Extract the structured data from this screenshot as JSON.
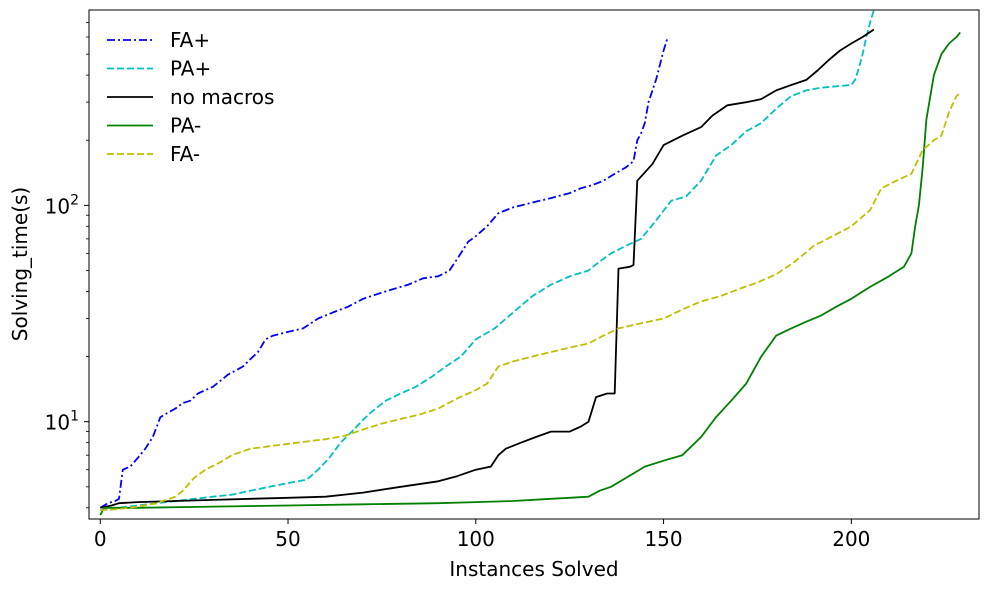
{
  "chart_data": {
    "type": "line",
    "xlabel": "Instances Solved",
    "ylabel": "Solving_time(s)",
    "yscale": "log",
    "xlim": [
      -3,
      234
    ],
    "ylim": [
      3.55,
      800
    ],
    "xticks": [
      {
        "value": 0,
        "label": "0"
      },
      {
        "value": 50,
        "label": "50"
      },
      {
        "value": 100,
        "label": "100"
      },
      {
        "value": 150,
        "label": "150"
      },
      {
        "value": 200,
        "label": "200"
      }
    ],
    "yticks": [
      {
        "value": 10,
        "base": "10",
        "exp": "1"
      },
      {
        "value": 100,
        "base": "10",
        "exp": "2"
      }
    ],
    "grid": false,
    "legend_position": "top-left",
    "series": [
      {
        "name": "FA+",
        "color": "#0000ff",
        "dash": "dashdot",
        "points": [
          [
            0,
            4.0
          ],
          [
            2,
            4.2
          ],
          [
            4,
            4.3
          ],
          [
            5,
            4.4
          ],
          [
            6,
            6.0
          ],
          [
            8,
            6.2
          ],
          [
            10,
            6.8
          ],
          [
            12,
            7.5
          ],
          [
            14,
            8.5
          ],
          [
            16,
            10.5
          ],
          [
            18,
            11
          ],
          [
            20,
            11.5
          ],
          [
            22,
            12.2
          ],
          [
            24,
            12.5
          ],
          [
            26,
            13.5
          ],
          [
            30,
            14.5
          ],
          [
            34,
            16.5
          ],
          [
            38,
            18
          ],
          [
            40,
            19.5
          ],
          [
            42,
            21
          ],
          [
            44,
            24
          ],
          [
            46,
            25
          ],
          [
            48,
            25.5
          ],
          [
            50,
            26
          ],
          [
            54,
            27
          ],
          [
            58,
            30
          ],
          [
            62,
            32
          ],
          [
            66,
            34
          ],
          [
            70,
            37
          ],
          [
            74,
            39
          ],
          [
            78,
            41
          ],
          [
            82,
            43
          ],
          [
            86,
            46
          ],
          [
            90,
            47
          ],
          [
            93,
            50
          ],
          [
            96,
            60
          ],
          [
            98,
            68
          ],
          [
            100,
            72
          ],
          [
            103,
            80
          ],
          [
            106,
            92
          ],
          [
            110,
            98
          ],
          [
            115,
            103
          ],
          [
            120,
            108
          ],
          [
            125,
            114
          ],
          [
            128,
            120
          ],
          [
            131,
            124
          ],
          [
            134,
            130
          ],
          [
            137,
            140
          ],
          [
            140,
            150
          ],
          [
            142,
            160
          ],
          [
            143,
            200
          ],
          [
            144,
            215
          ],
          [
            145,
            240
          ],
          [
            146,
            300
          ],
          [
            148,
            380
          ],
          [
            150,
            520
          ],
          [
            151,
            590
          ]
        ]
      },
      {
        "name": "PA+",
        "color": "#00bfbf",
        "dash": "dashed",
        "points": [
          [
            0,
            3.9
          ],
          [
            5,
            4.0
          ],
          [
            10,
            4.1
          ],
          [
            20,
            4.3
          ],
          [
            30,
            4.5
          ],
          [
            35,
            4.6
          ],
          [
            40,
            4.8
          ],
          [
            45,
            5.0
          ],
          [
            50,
            5.2
          ],
          [
            55,
            5.4
          ],
          [
            58,
            6.0
          ],
          [
            61,
            6.8
          ],
          [
            64,
            8
          ],
          [
            67,
            9.0
          ],
          [
            70,
            10.2
          ],
          [
            72,
            11
          ],
          [
            76,
            12.5
          ],
          [
            80,
            13.5
          ],
          [
            84,
            14.5
          ],
          [
            88,
            16
          ],
          [
            92,
            18
          ],
          [
            96,
            20
          ],
          [
            100,
            24
          ],
          [
            105,
            27
          ],
          [
            110,
            32
          ],
          [
            115,
            38
          ],
          [
            120,
            43
          ],
          [
            125,
            47
          ],
          [
            130,
            50
          ],
          [
            133,
            55
          ],
          [
            136,
            60
          ],
          [
            140,
            65
          ],
          [
            144,
            70
          ],
          [
            148,
            85
          ],
          [
            152,
            105
          ],
          [
            156,
            110
          ],
          [
            160,
            130
          ],
          [
            164,
            170
          ],
          [
            168,
            190
          ],
          [
            172,
            220
          ],
          [
            176,
            240
          ],
          [
            180,
            280
          ],
          [
            184,
            320
          ],
          [
            188,
            340
          ],
          [
            192,
            350
          ],
          [
            196,
            355
          ],
          [
            200,
            360
          ],
          [
            201,
            380
          ],
          [
            202,
            430
          ],
          [
            203,
            500
          ],
          [
            204,
            600
          ],
          [
            205,
            700
          ],
          [
            206,
            800
          ]
        ]
      },
      {
        "name": "no macros",
        "color": "#000000",
        "dash": "solid",
        "points": [
          [
            0,
            4.0
          ],
          [
            3,
            4.1
          ],
          [
            5,
            4.2
          ],
          [
            10,
            4.25
          ],
          [
            20,
            4.3
          ],
          [
            30,
            4.35
          ],
          [
            40,
            4.4
          ],
          [
            50,
            4.45
          ],
          [
            60,
            4.5
          ],
          [
            70,
            4.7
          ],
          [
            80,
            5.0
          ],
          [
            90,
            5.3
          ],
          [
            95,
            5.6
          ],
          [
            100,
            6.0
          ],
          [
            104,
            6.2
          ],
          [
            106,
            7.0
          ],
          [
            108,
            7.5
          ],
          [
            112,
            8.0
          ],
          [
            116,
            8.5
          ],
          [
            120,
            9.0
          ],
          [
            125,
            9.0
          ],
          [
            128,
            9.5
          ],
          [
            130,
            10.0
          ],
          [
            132,
            13
          ],
          [
            135,
            13.5
          ],
          [
            137,
            13.5
          ],
          [
            138,
            51
          ],
          [
            141,
            52
          ],
          [
            142,
            53
          ],
          [
            143,
            130
          ],
          [
            147,
            155
          ],
          [
            150,
            190
          ],
          [
            155,
            210
          ],
          [
            160,
            230
          ],
          [
            163,
            260
          ],
          [
            167,
            290
          ],
          [
            172,
            300
          ],
          [
            176,
            310
          ],
          [
            180,
            340
          ],
          [
            184,
            360
          ],
          [
            188,
            380
          ],
          [
            191,
            420
          ],
          [
            194,
            470
          ],
          [
            197,
            520
          ],
          [
            200,
            560
          ],
          [
            203,
            600
          ],
          [
            206,
            650
          ]
        ]
      },
      {
        "name": "PA-",
        "color": "#008000",
        "dash": "solid",
        "points": [
          [
            0,
            3.7
          ],
          [
            1,
            4.0
          ],
          [
            10,
            4.0
          ],
          [
            30,
            4.05
          ],
          [
            50,
            4.1
          ],
          [
            70,
            4.15
          ],
          [
            90,
            4.2
          ],
          [
            100,
            4.25
          ],
          [
            110,
            4.3
          ],
          [
            120,
            4.4
          ],
          [
            125,
            4.45
          ],
          [
            130,
            4.5
          ],
          [
            133,
            4.8
          ],
          [
            136,
            5.0
          ],
          [
            140,
            5.5
          ],
          [
            145,
            6.2
          ],
          [
            150,
            6.6
          ],
          [
            155,
            7.0
          ],
          [
            160,
            8.5
          ],
          [
            164,
            10.5
          ],
          [
            168,
            12.5
          ],
          [
            172,
            15
          ],
          [
            176,
            20
          ],
          [
            180,
            25
          ],
          [
            184,
            27
          ],
          [
            188,
            29
          ],
          [
            192,
            31
          ],
          [
            196,
            34
          ],
          [
            200,
            37
          ],
          [
            205,
            42
          ],
          [
            210,
            47
          ],
          [
            214,
            52
          ],
          [
            216,
            60
          ],
          [
            217,
            80
          ],
          [
            218,
            100
          ],
          [
            219,
            150
          ],
          [
            220,
            250
          ],
          [
            222,
            400
          ],
          [
            224,
            500
          ],
          [
            226,
            560
          ],
          [
            228,
            600
          ],
          [
            229,
            630
          ]
        ]
      },
      {
        "name": "FA-",
        "color": "#bfbf00",
        "dash": "dashed",
        "points": [
          [
            0,
            3.9
          ],
          [
            5,
            3.95
          ],
          [
            10,
            4.05
          ],
          [
            15,
            4.2
          ],
          [
            20,
            4.5
          ],
          [
            22,
            4.8
          ],
          [
            25,
            5.5
          ],
          [
            28,
            6.0
          ],
          [
            32,
            6.5
          ],
          [
            35,
            7.0
          ],
          [
            40,
            7.5
          ],
          [
            45,
            7.7
          ],
          [
            50,
            7.9
          ],
          [
            55,
            8.1
          ],
          [
            60,
            8.3
          ],
          [
            65,
            8.6
          ],
          [
            70,
            9.2
          ],
          [
            75,
            9.8
          ],
          [
            80,
            10.3
          ],
          [
            85,
            10.8
          ],
          [
            90,
            11.5
          ],
          [
            95,
            12.8
          ],
          [
            100,
            14
          ],
          [
            103,
            15
          ],
          [
            106,
            18
          ],
          [
            110,
            19
          ],
          [
            115,
            20
          ],
          [
            120,
            21
          ],
          [
            125,
            22
          ],
          [
            130,
            23
          ],
          [
            134,
            25
          ],
          [
            138,
            27
          ],
          [
            142,
            28
          ],
          [
            146,
            29
          ],
          [
            150,
            30
          ],
          [
            155,
            33
          ],
          [
            160,
            36
          ],
          [
            165,
            38
          ],
          [
            170,
            41
          ],
          [
            175,
            44
          ],
          [
            180,
            48
          ],
          [
            185,
            55
          ],
          [
            190,
            65
          ],
          [
            195,
            72
          ],
          [
            200,
            80
          ],
          [
            205,
            95
          ],
          [
            208,
            120
          ],
          [
            212,
            130
          ],
          [
            216,
            140
          ],
          [
            219,
            180
          ],
          [
            222,
            200
          ],
          [
            224,
            210
          ],
          [
            226,
            270
          ],
          [
            228,
            320
          ],
          [
            229,
            330
          ]
        ]
      }
    ]
  }
}
